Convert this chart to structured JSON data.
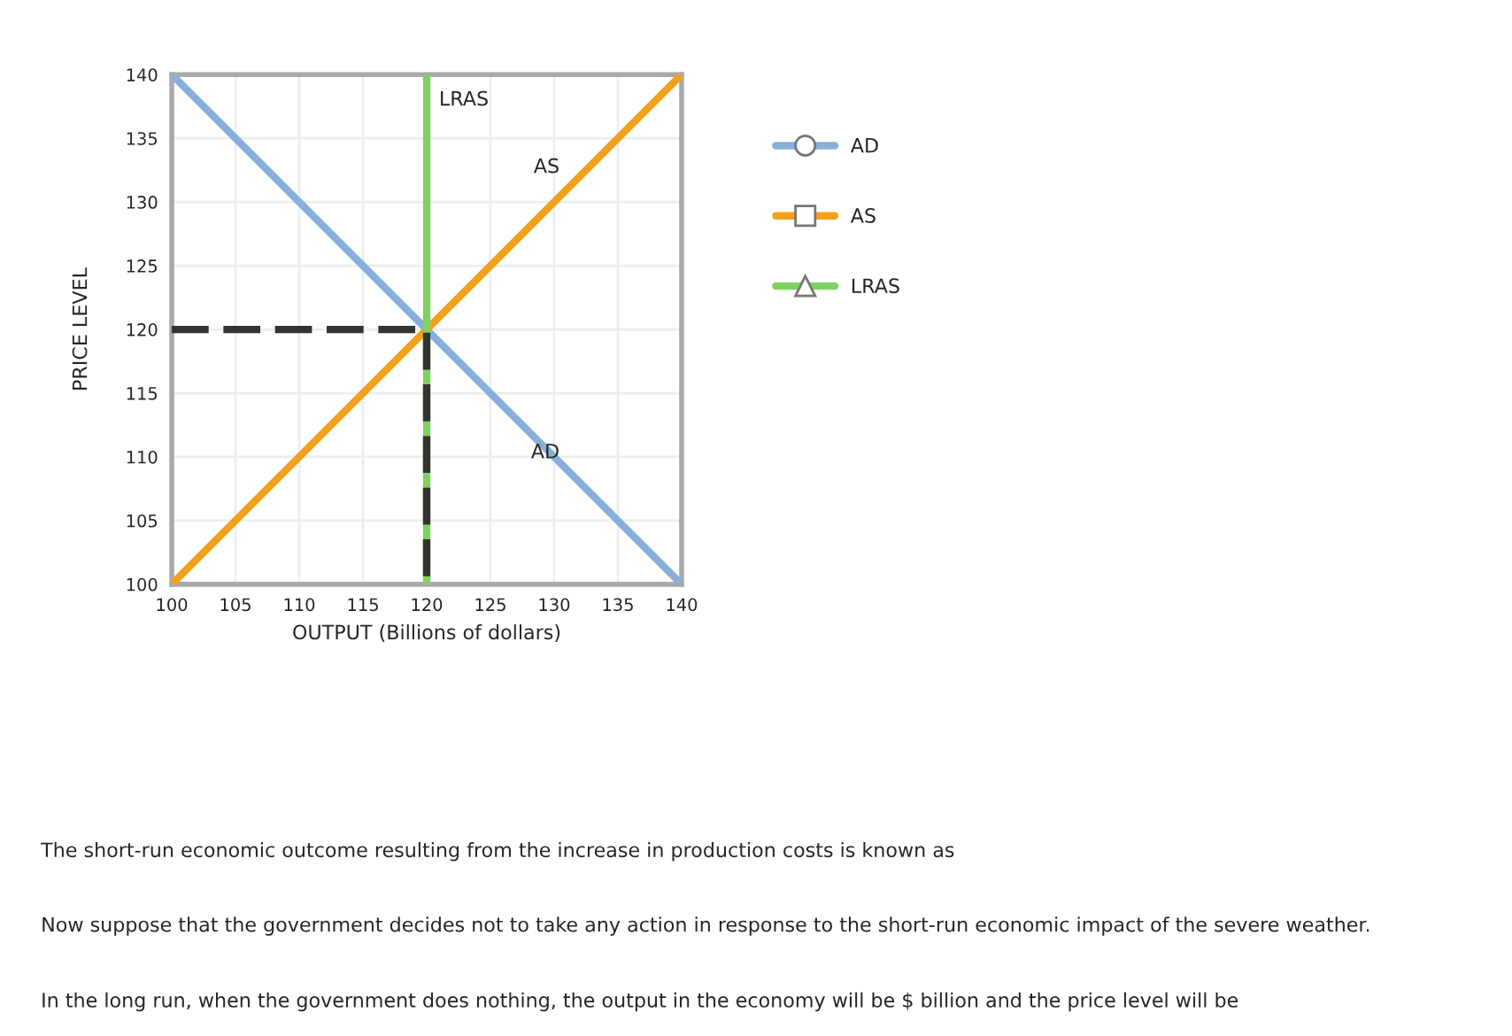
{
  "chart_data": {
    "type": "line",
    "xlabel": "OUTPUT (Billions of dollars)",
    "ylabel": "PRICE LEVEL",
    "xlim": [
      100,
      140
    ],
    "ylim": [
      100,
      140
    ],
    "xticks": [
      100,
      105,
      110,
      115,
      120,
      125,
      130,
      135,
      140
    ],
    "yticks": [
      100,
      105,
      110,
      115,
      120,
      125,
      130,
      135,
      140
    ],
    "grid": true,
    "legend": "right",
    "series": [
      {
        "name": "AD",
        "color": "#88b0d8",
        "x": [
          100,
          140
        ],
        "values": [
          140,
          100
        ]
      },
      {
        "name": "AS",
        "color": "#f5a01a",
        "x": [
          100,
          140
        ],
        "values": [
          100,
          140
        ]
      },
      {
        "name": "LRAS",
        "color": "#7fd163",
        "x": [
          120,
          120
        ],
        "values": [
          100,
          140
        ]
      },
      {
        "color": "#333333",
        "x": [
          100,
          120,
          120
        ],
        "values": [
          120,
          120,
          100
        ],
        "line_style": "dashed"
      }
    ],
    "annotations": [
      "The short-run economic outcome resulting from the increase in production costs is known as",
      "Now suppose that the government decides not to take any action in response to the short-run economic impact of the severe weather.",
      "In the long run, when the government does nothing, the output in the economy will be $ billion and the price level will be"
    ]
  }
}
